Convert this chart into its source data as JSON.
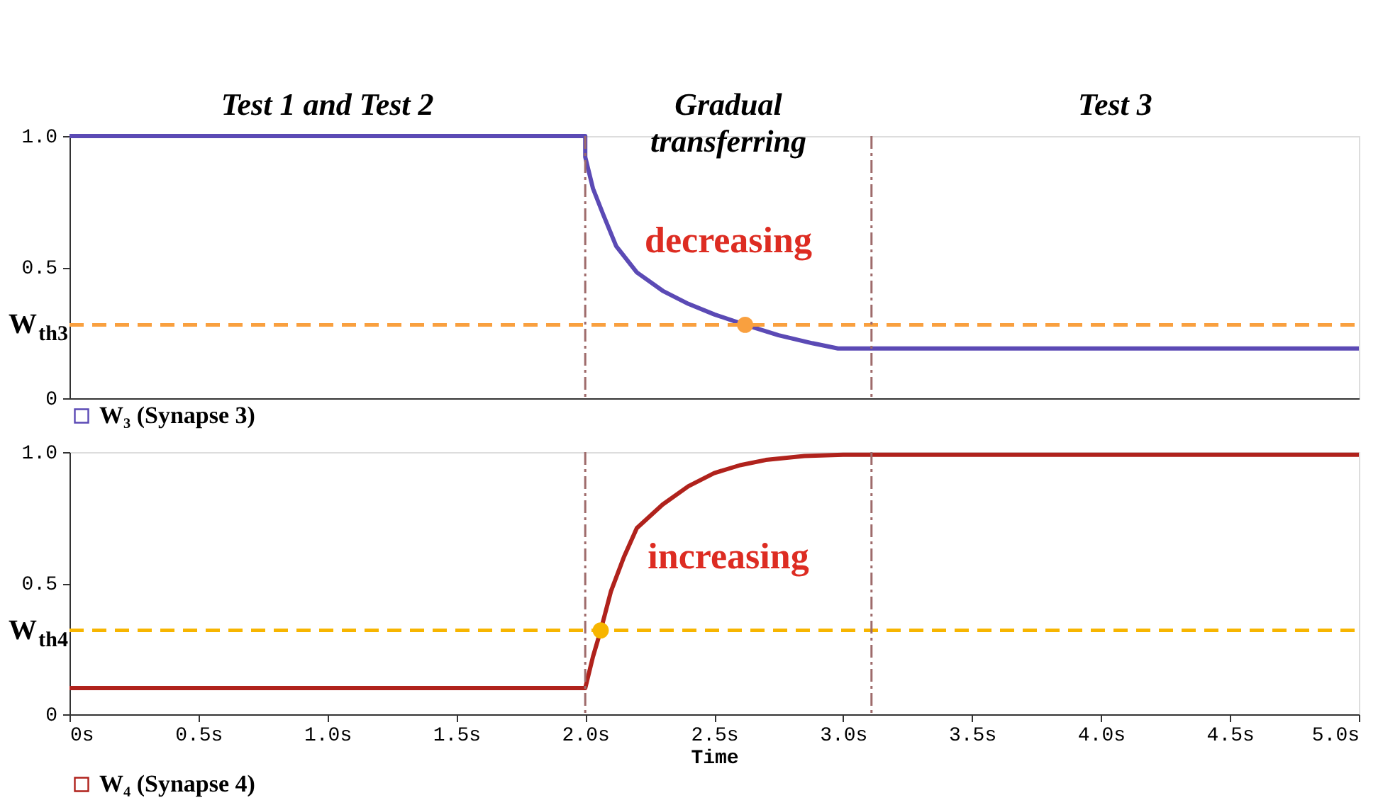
{
  "chart_data": [
    {
      "type": "line",
      "xlim": [
        0,
        5
      ],
      "ylim": [
        0,
        1
      ],
      "yticks": [
        0,
        0.5,
        {
          "value": 1,
          "label": "1.0"
        }
      ],
      "tick_labels": "y",
      "grid": false,
      "legend": "bottom left",
      "line_style": "solid",
      "series": [
        {
          "name": "W₃ (Synapse 3)",
          "color": "#5b4ab5",
          "x": [
            0,
            2.0,
            2.0,
            2.03,
            2.07,
            2.12,
            2.2,
            2.3,
            2.4,
            2.5,
            2.62,
            2.75,
            2.88,
            2.98,
            5.0
          ],
          "values": [
            1,
            1,
            0.92,
            0.8,
            0.7,
            0.58,
            0.48,
            0.41,
            0.36,
            0.32,
            0.28,
            0.24,
            0.21,
            0.19,
            0.19
          ]
        },
        {
          "type": "scatter",
          "color": "#f9a03f",
          "marker": "circle",
          "x": [
            2.62
          ],
          "values": [
            0.28
          ]
        }
      ],
      "ref_lines": [
        {
          "axis": "y",
          "value": 0.28,
          "label": "W$_{th3}$",
          "color": "#f9a03f",
          "line_style": "dashed"
        },
        {
          "axis": "x",
          "value": 2.0,
          "color": "#9e6b6b",
          "line_style": "dashed"
        },
        {
          "axis": "x",
          "value": 3.11,
          "color": "#9e6b6b",
          "line_style": "dashed"
        }
      ],
      "annotations": [
        "Test 1 and Test 2",
        "Gradual\ntransferring",
        "Test 3",
        "decreasing"
      ]
    },
    {
      "type": "line",
      "xlim": [
        0,
        5
      ],
      "xticks": [
        {
          "value": 0,
          "label": "0s"
        },
        {
          "value": 0.5,
          "label": "0.5s"
        },
        {
          "value": 1,
          "label": "1.0s"
        },
        {
          "value": 1.5,
          "label": "1.5s"
        },
        {
          "value": 2,
          "label": "2.0s"
        },
        {
          "value": 2.5,
          "label": "2.5s"
        },
        {
          "value": 3,
          "label": "3.0s"
        },
        {
          "value": 3.5,
          "label": "3.5s"
        },
        {
          "value": 4,
          "label": "4.0s"
        },
        {
          "value": 4.5,
          "label": "4.5s"
        },
        {
          "value": 5,
          "label": "5.0s"
        }
      ],
      "ylim": [
        0,
        1
      ],
      "yticks": [
        0,
        0.5,
        {
          "value": 1,
          "label": "1.0"
        }
      ],
      "xlabel": "Time",
      "grid": false,
      "legend": "bottom left",
      "line_style": "solid",
      "series": [
        {
          "name": "W₄ (Synapse 4)",
          "color": "#b0221c",
          "x": [
            0,
            2.0,
            2.03,
            2.06,
            2.1,
            2.15,
            2.2,
            2.3,
            2.4,
            2.5,
            2.6,
            2.7,
            2.85,
            3.0,
            5.0
          ],
          "values": [
            0.1,
            0.1,
            0.22,
            0.32,
            0.47,
            0.6,
            0.71,
            0.8,
            0.87,
            0.92,
            0.95,
            0.97,
            0.985,
            0.99,
            0.99
          ]
        },
        {
          "type": "scatter",
          "color": "#f7b500",
          "marker": "circle",
          "x": [
            2.06
          ],
          "values": [
            0.32
          ]
        }
      ],
      "ref_lines": [
        {
          "axis": "y",
          "value": 0.32,
          "label": "W$_{th4}$",
          "color": "#f7b500",
          "line_style": "dashed"
        },
        {
          "axis": "x",
          "value": 2.0,
          "color": "#9e6b6b",
          "line_style": "dashed"
        },
        {
          "axis": "x",
          "value": 3.11,
          "color": "#9e6b6b",
          "line_style": "dashed"
        }
      ],
      "annotations": [
        "increasing"
      ]
    }
  ]
}
